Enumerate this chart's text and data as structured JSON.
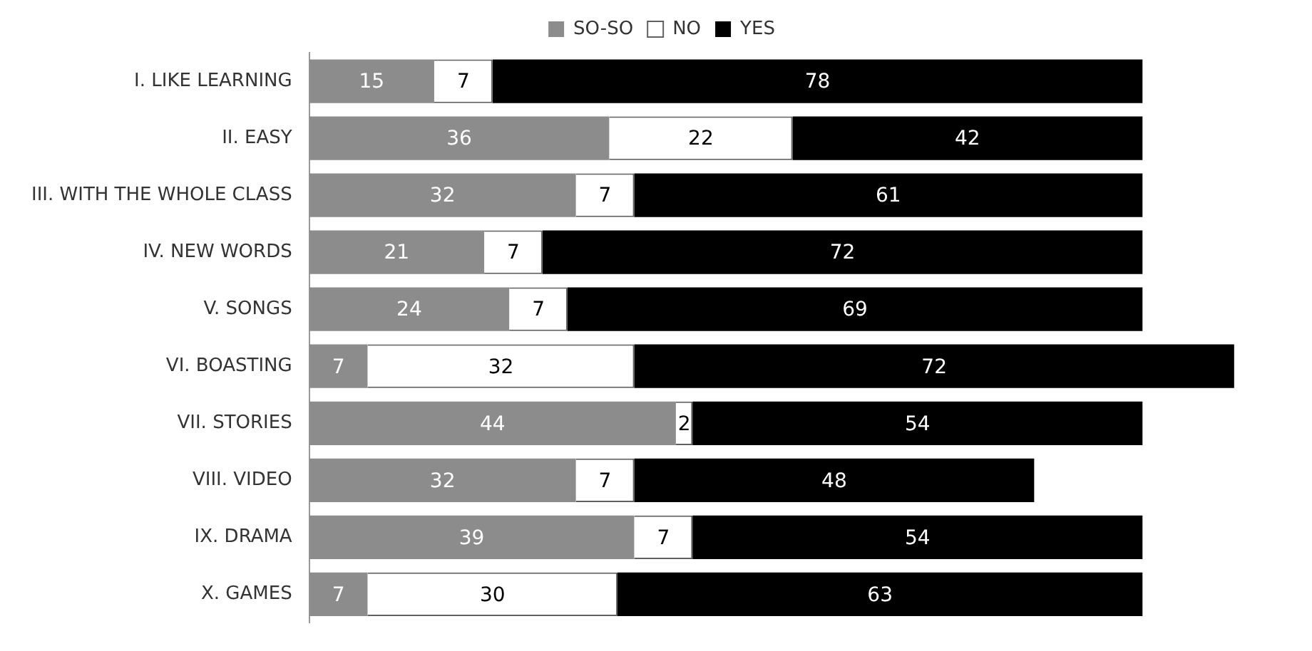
{
  "chart_data": {
    "type": "bar",
    "orientation": "horizontal",
    "stacked": true,
    "data_labels": true,
    "legend": "top",
    "grid": false,
    "tick_labels": "y",
    "categories": [
      "I. LIKE LEARNING",
      "II. EASY",
      "III. WITH THE WHOLE CLASS",
      "IV. NEW WORDS",
      "V. SONGS",
      "VI. BOASTING",
      "VII. STORIES",
      "VIII. VIDEO",
      "IX. DRAMA",
      "X. GAMES"
    ],
    "series": [
      {
        "name": "SO-SO",
        "color": "#8c8c8c",
        "values": [
          15,
          36,
          32,
          21,
          24,
          7,
          44,
          32,
          39,
          7
        ]
      },
      {
        "name": "NO",
        "color": "#ffffff",
        "values": [
          7,
          22,
          7,
          7,
          7,
          32,
          2,
          7,
          7,
          30
        ]
      },
      {
        "name": "YES",
        "color": "#000000",
        "values": [
          78,
          42,
          61,
          72,
          69,
          72,
          54,
          48,
          54,
          63
        ]
      }
    ]
  }
}
